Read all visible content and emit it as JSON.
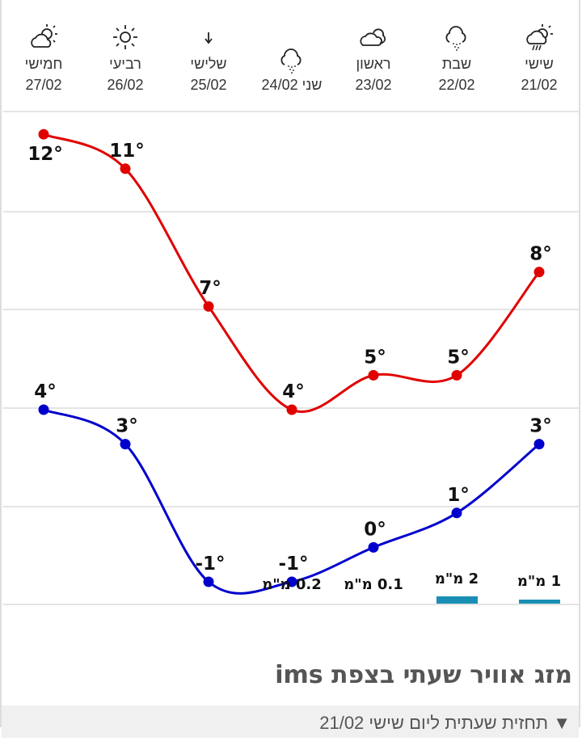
{
  "days": [
    {
      "name": "שישי",
      "date": "21/02",
      "icon": "partly-cloudy-rain-icon"
    },
    {
      "name": "שבת",
      "date": "22/02",
      "icon": "cloud-snow-icon"
    },
    {
      "name": "ראשון",
      "date": "23/02",
      "icon": "clouds-icon"
    },
    {
      "name": "שני",
      "date": "24/02",
      "icon": "cloud-snow-icon"
    },
    {
      "name": "שלישי",
      "date": "25/02",
      "icon": "wind-arrow-down-icon"
    },
    {
      "name": "רביעי",
      "date": "26/02",
      "icon": "sun-icon"
    },
    {
      "name": "חמישי",
      "date": "27/02",
      "icon": "partly-cloudy-icon"
    }
  ],
  "chart_data": {
    "type": "line",
    "categories": [
      "21/02",
      "22/02",
      "23/02",
      "24/02",
      "25/02",
      "26/02",
      "27/02"
    ],
    "series": [
      {
        "name": "max",
        "color": "#e00000",
        "values": [
          8,
          5,
          5,
          4,
          7,
          11,
          12
        ]
      },
      {
        "name": "min",
        "color": "#0000cc",
        "values": [
          3,
          1,
          0,
          -1,
          -1,
          3,
          4
        ]
      }
    ],
    "unit": "°",
    "precip": [
      {
        "label": "1 מ\"מ",
        "value": 1,
        "bar": true
      },
      {
        "label": "2 מ\"מ",
        "value": 2,
        "bar": true
      },
      {
        "label": "0.1 מ\"מ",
        "value": 0.1,
        "bar": false
      },
      {
        "label": "0.2 מ\"מ",
        "value": 0.2,
        "bar": false
      },
      null,
      null,
      null
    ],
    "precip_color": "#1a8fb5"
  },
  "hourly": {
    "title": "מזג אוויר שעתי בצפת ims",
    "toggle": "▼ תחזית שעתית ליום שישי 21/02"
  }
}
